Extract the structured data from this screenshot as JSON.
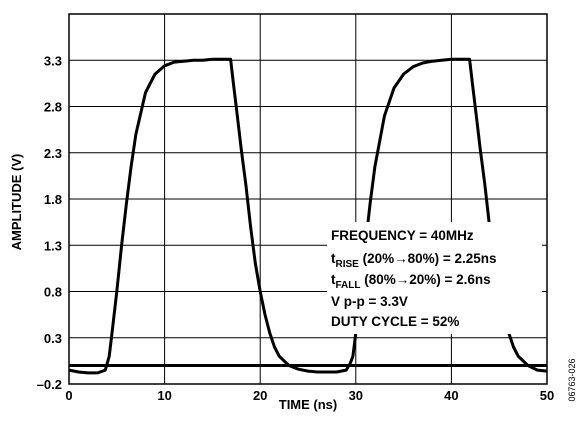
{
  "chart_data": {
    "type": "line",
    "title": "",
    "xlabel": "TIME (ns)",
    "ylabel": "AMPLITUDE (V)",
    "xlim": [
      0,
      50
    ],
    "ylim": [
      -0.2,
      3.8
    ],
    "grid": true,
    "x_ticks": [
      0,
      10,
      20,
      30,
      40,
      50
    ],
    "y_ticks": [
      -0.2,
      0.3,
      0.8,
      1.3,
      1.8,
      2.3,
      2.8,
      3.3
    ],
    "y_tick_labels": [
      "–0.2",
      "0.3",
      "0.8",
      "1.3",
      "1.8",
      "2.3",
      "2.8",
      "3.3"
    ],
    "baseline_y": 0,
    "series": [
      {
        "x": [
          0,
          1,
          2,
          3,
          3.8,
          4.2,
          4.5,
          5,
          5.5,
          6,
          6.5,
          7,
          8,
          9,
          10,
          11,
          12,
          13,
          14,
          15,
          16,
          16.9,
          17.2,
          17.6,
          18,
          18.5,
          19,
          19.5,
          20,
          20.5,
          21,
          21.5,
          22,
          23,
          24,
          25,
          26,
          27,
          28,
          29,
          29.4,
          29.7,
          30,
          30.5,
          31,
          31.5,
          32,
          33,
          34,
          35,
          36,
          37,
          38,
          39,
          40,
          41,
          41.9,
          42.2,
          42.6,
          43,
          43.5,
          44,
          44.5,
          45,
          45.5,
          46,
          46.5,
          47,
          48,
          49,
          50
        ],
        "y": [
          -0.05,
          -0.07,
          -0.08,
          -0.08,
          -0.05,
          0.1,
          0.35,
          0.8,
          1.3,
          1.75,
          2.15,
          2.5,
          2.95,
          3.15,
          3.24,
          3.28,
          3.29,
          3.3,
          3.3,
          3.31,
          3.31,
          3.31,
          3.05,
          2.7,
          2.35,
          1.95,
          1.5,
          1.1,
          0.8,
          0.55,
          0.35,
          0.2,
          0.1,
          0.0,
          -0.04,
          -0.06,
          -0.07,
          -0.07,
          -0.07,
          -0.05,
          0.02,
          0.1,
          0.35,
          0.8,
          1.3,
          1.75,
          2.15,
          2.7,
          3.0,
          3.15,
          3.23,
          3.27,
          3.29,
          3.3,
          3.31,
          3.31,
          3.31,
          3.05,
          2.7,
          2.35,
          1.95,
          1.5,
          1.1,
          0.8,
          0.55,
          0.35,
          0.2,
          0.1,
          0.0,
          -0.05,
          -0.06
        ]
      }
    ],
    "annotation": {
      "line1": "FREQUENCY = 40MHz",
      "line2_t": "t",
      "line2_sub": "RISE",
      "line2_rest": " (20%→80%) = 2.25ns",
      "line3_t": "t",
      "line3_sub": "FALL",
      "line3_rest": " (80%→20%) = 2.6ns",
      "line4": "V p-p = 3.3V",
      "line5": "DUTY CYCLE = 52%"
    },
    "figure_id": "06763-026"
  }
}
